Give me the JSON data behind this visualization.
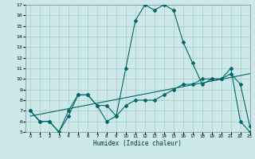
{
  "xlabel": "Humidex (Indice chaleur)",
  "bg_color": "#cce8e8",
  "grid_color": "#aacccc",
  "line_color": "#006666",
  "series1_x": [
    0,
    1,
    2,
    3,
    4,
    5,
    6,
    7,
    8,
    9,
    10,
    11,
    12,
    13,
    14,
    15,
    16,
    17,
    18,
    19,
    20,
    21,
    22,
    23
  ],
  "series1_y": [
    7,
    6,
    6,
    5,
    7,
    8.5,
    8.5,
    7.5,
    6,
    6.5,
    11,
    15.5,
    17,
    16.5,
    17,
    16.5,
    13.5,
    11.5,
    9.5,
    10,
    10,
    11,
    6,
    5
  ],
  "series2_x": [
    0,
    1,
    2,
    3,
    4,
    5,
    6,
    7,
    8,
    9,
    10,
    11,
    12,
    13,
    14,
    15,
    16,
    17,
    18,
    19,
    20,
    21,
    22,
    23
  ],
  "series2_y": [
    7,
    6,
    6,
    5,
    6.5,
    8.5,
    8.5,
    7.5,
    7.5,
    6.5,
    7.5,
    8,
    8,
    8,
    8.5,
    9,
    9.5,
    9.5,
    10,
    10,
    10,
    10.5,
    9.5,
    5.5
  ],
  "series3_x": [
    0,
    23
  ],
  "series3_y": [
    6.5,
    10.5
  ],
  "ylim": [
    5,
    17
  ],
  "xlim": [
    -0.5,
    23
  ],
  "yticks": [
    5,
    6,
    7,
    8,
    9,
    10,
    11,
    12,
    13,
    14,
    15,
    16,
    17
  ],
  "xticks": [
    0,
    1,
    2,
    3,
    4,
    5,
    6,
    7,
    8,
    9,
    10,
    11,
    12,
    13,
    14,
    15,
    16,
    17,
    18,
    19,
    20,
    21,
    22,
    23
  ]
}
